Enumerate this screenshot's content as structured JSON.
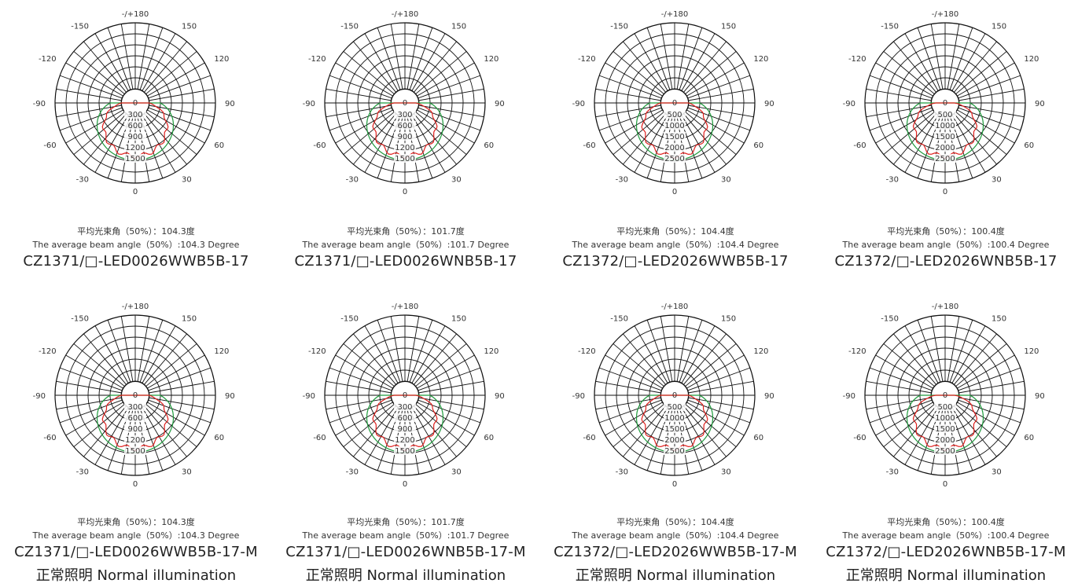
{
  "angle_labels": [
    "-/+180",
    "150",
    "120",
    "90",
    "60",
    "30",
    "0",
    "-30",
    "-60",
    "-90",
    "-120",
    "-150"
  ],
  "panels": [
    {
      "caption_cn": "平均光束角（50%）：104.3度",
      "caption_en": "The average beam angle（50%）:104.3 Degree",
      "model": "CZ1371/□-LED0026WWB5B-17",
      "extra": "",
      "radial_labels": [
        "0",
        "300",
        "600",
        "900",
        "1200",
        "1500"
      ],
      "beam_angle_deg": 104.3
    },
    {
      "caption_cn": "平均光束角（50%）：101.7度",
      "caption_en": "The average beam angle（50%）:101.7 Degree",
      "model": "CZ1371/□-LED0026WNB5B-17",
      "extra": "",
      "radial_labels": [
        "0",
        "300",
        "600",
        "900",
        "1200",
        "1500"
      ],
      "beam_angle_deg": 101.7
    },
    {
      "caption_cn": "平均光束角（50%）：104.4度",
      "caption_en": "The average beam angle（50%）:104.4 Degree",
      "model": "CZ1372/□-LED2026WWB5B-17",
      "extra": "",
      "radial_labels": [
        "0",
        "500",
        "1000",
        "1500",
        "2000",
        "2500"
      ],
      "beam_angle_deg": 104.4
    },
    {
      "caption_cn": "平均光束角（50%）：100.4度",
      "caption_en": "The average beam angle（50%）:100.4 Degree",
      "model": "CZ1372/□-LED2026WNB5B-17",
      "extra": "",
      "radial_labels": [
        "0",
        "500",
        "1000",
        "1500",
        "2000",
        "2500"
      ],
      "beam_angle_deg": 100.4
    },
    {
      "caption_cn": "平均光束角（50%）：104.3度",
      "caption_en": "The average beam angle（50%）:104.3 Degree",
      "model": "CZ1371/□-LED0026WWB5B-17-M",
      "extra": "正常照明 Normal illumination",
      "radial_labels": [
        "0",
        "300",
        "600",
        "900",
        "1200",
        "1500"
      ],
      "beam_angle_deg": 104.3
    },
    {
      "caption_cn": "平均光束角（50%）：101.7度",
      "caption_en": "The average beam angle（50%）:101.7 Degree",
      "model": "CZ1371/□-LED0026WNB5B-17-M",
      "extra": "正常照明 Normal illumination",
      "radial_labels": [
        "0",
        "300",
        "600",
        "900",
        "1200",
        "1500"
      ],
      "beam_angle_deg": 101.7
    },
    {
      "caption_cn": "平均光束角（50%）：104.4度",
      "caption_en": "The average beam angle（50%）:104.4 Degree",
      "model": "CZ1372/□-LED2026WWB5B-17-M",
      "extra": "正常照明 Normal illumination",
      "radial_labels": [
        "0",
        "500",
        "1000",
        "1500",
        "2000",
        "2500"
      ],
      "beam_angle_deg": 104.4
    },
    {
      "caption_cn": "平均光束角（50%）：100.4度",
      "caption_en": "The average beam angle（50%）:100.4 Degree",
      "model": "CZ1372/□-LED2026WNB5B-17-M",
      "extra": "正常照明 Normal illumination",
      "radial_labels": [
        "0",
        "500",
        "1000",
        "1500",
        "2000",
        "2500"
      ],
      "beam_angle_deg": 100.4
    }
  ],
  "colors": {
    "grid": "#111111",
    "curve_red": "#e0201e",
    "curve_green": "#1e9a3c",
    "text": "#333333"
  }
}
